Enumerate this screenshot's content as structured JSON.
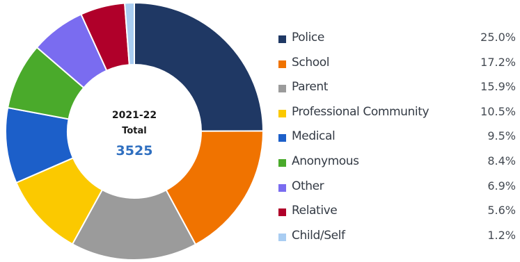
{
  "chart_data": {
    "type": "pie",
    "center": {
      "year": "2021-22",
      "label": "Total",
      "total": "3525"
    },
    "series": [
      {
        "name": "Police",
        "value": 25.0,
        "label": "25.0%",
        "color": "#1f3864"
      },
      {
        "name": "School",
        "value": 17.2,
        "label": "17.2%",
        "color": "#f07300"
      },
      {
        "name": "Parent",
        "value": 15.9,
        "label": "15.9%",
        "color": "#9b9b9b"
      },
      {
        "name": "Professional Community",
        "value": 10.5,
        "label": "10.5%",
        "color": "#fbc900"
      },
      {
        "name": "Medical",
        "value": 9.5,
        "label": "9.5%",
        "color": "#1c5fc9"
      },
      {
        "name": "Anonymous",
        "value": 8.4,
        "label": "8.4%",
        "color": "#4aaa2b"
      },
      {
        "name": "Other",
        "value": 6.9,
        "label": "6.9%",
        "color": "#7a6cf0"
      },
      {
        "name": "Relative",
        "value": 5.6,
        "label": "5.6%",
        "color": "#b0002a"
      },
      {
        "name": "Child/Self",
        "value": 1.2,
        "label": "1.2%",
        "color": "#a9cdf2"
      }
    ],
    "legend_position": "right"
  }
}
